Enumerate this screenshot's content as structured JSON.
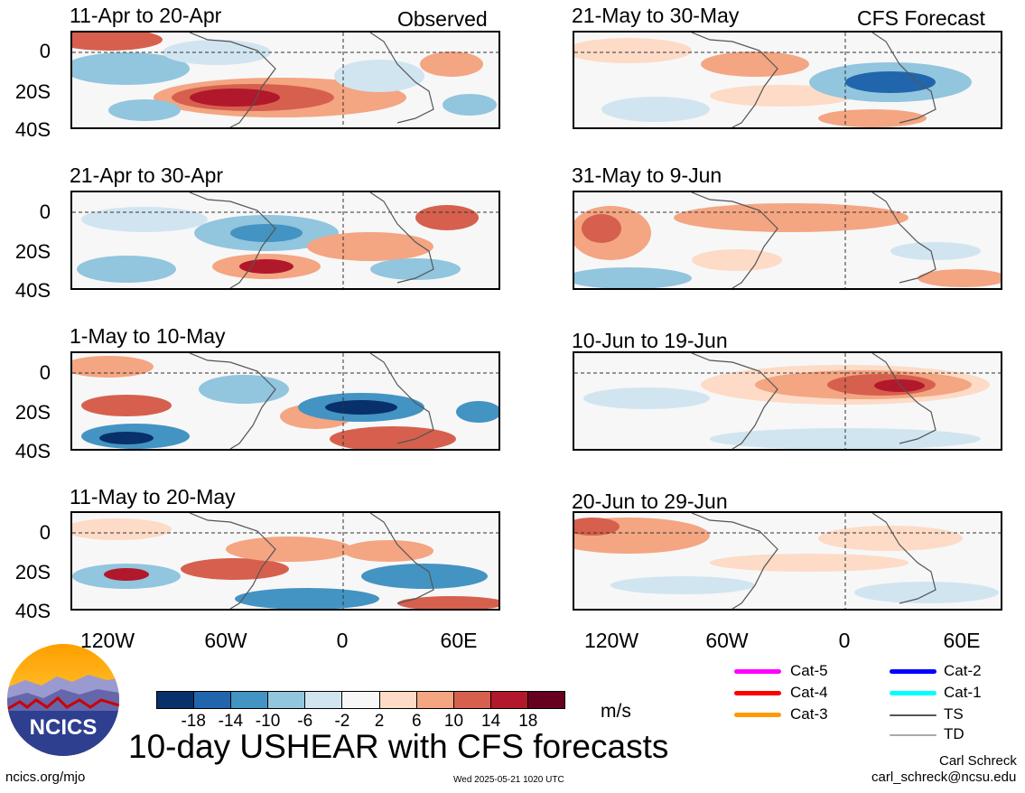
{
  "header": {
    "left_label": "Observed",
    "right_label": "CFS Forecast"
  },
  "panels_left": [
    {
      "title": "11-Apr to 20-Apr"
    },
    {
      "title": "21-Apr to 30-Apr"
    },
    {
      "title": "1-May to 10-May"
    },
    {
      "title": "11-May to 20-May"
    }
  ],
  "panels_right": [
    {
      "title": "21-May to 30-May"
    },
    {
      "title": "31-May to 9-Jun"
    },
    {
      "title": "10-Jun to 19-Jun"
    },
    {
      "title": "20-Jun to 29-Jun"
    }
  ],
  "y_ticks": [
    "0",
    "20S",
    "40S"
  ],
  "x_ticks": [
    "120W",
    "60W",
    "0",
    "60E"
  ],
  "colorbar": {
    "colors": [
      "#08306b",
      "#2166ac",
      "#4393c3",
      "#92c5de",
      "#d1e5f0",
      "#f7f7f7",
      "#fddbc7",
      "#f4a582",
      "#d6604d",
      "#b2182b",
      "#67001f"
    ],
    "ticks": [
      "-18",
      "-14",
      "-10",
      "-6",
      "-2",
      "2",
      "6",
      "10",
      "14",
      "18"
    ],
    "unit": "m/s"
  },
  "legend": [
    {
      "label": "Cat-5",
      "color": "#ff00ff"
    },
    {
      "label": "Cat-4",
      "color": "#ff0000"
    },
    {
      "label": "Cat-3",
      "color": "#ff9900"
    },
    {
      "label": "Cat-2",
      "color": "#0000ff"
    },
    {
      "label": "Cat-1",
      "color": "#00ffff"
    },
    {
      "label": "TS",
      "color": "#555555"
    },
    {
      "label": "TD",
      "color": "#aaaaaa"
    }
  ],
  "logo": {
    "text": "NCICS"
  },
  "footer": {
    "title": "10-day USHEAR with CFS forecasts",
    "url": "ncics.org/mjo",
    "timestamp": "Wed 2025-05-21 1020 UTC",
    "author": "Carl Schreck",
    "email": "carl_schreck@ncsu.edu"
  }
}
